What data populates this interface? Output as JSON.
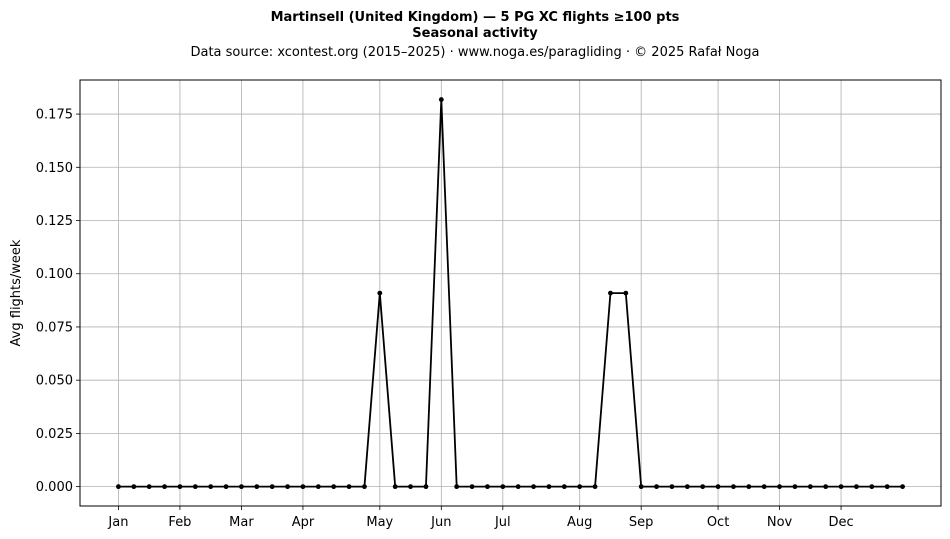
{
  "chart_data": {
    "type": "line",
    "title": "Martinsell (United Kingdom)  —  5 PG XC flights ≥100 pts",
    "subtitle": "Seasonal activity",
    "source_line": "Data source: xcontest.org (2015–2025)  ·  www.noga.es/paragliding  ·  © 2025 Rafał Noga",
    "xlabel": "",
    "ylabel": "Avg flights/week",
    "xlim": [
      -2.5,
      53.5
    ],
    "ylim": [
      -0.0091,
      0.191
    ],
    "grid": true,
    "x_ticks": [
      {
        "label": "Jan",
        "x": 0
      },
      {
        "label": "Feb",
        "x": 4
      },
      {
        "label": "Mar",
        "x": 8
      },
      {
        "label": "Apr",
        "x": 12
      },
      {
        "label": "May",
        "x": 17
      },
      {
        "label": "Jun",
        "x": 21
      },
      {
        "label": "Jul",
        "x": 25
      },
      {
        "label": "Aug",
        "x": 30
      },
      {
        "label": "Sep",
        "x": 34
      },
      {
        "label": "Oct",
        "x": 39
      },
      {
        "label": "Nov",
        "x": 43
      },
      {
        "label": "Dec",
        "x": 47
      }
    ],
    "y_ticks": [
      {
        "label": "0.000",
        "y": 0.0
      },
      {
        "label": "0.025",
        "y": 0.025
      },
      {
        "label": "0.050",
        "y": 0.05
      },
      {
        "label": "0.075",
        "y": 0.075
      },
      {
        "label": "0.100",
        "y": 0.1
      },
      {
        "label": "0.125",
        "y": 0.125
      },
      {
        "label": "0.150",
        "y": 0.15
      },
      {
        "label": "0.175",
        "y": 0.175
      }
    ],
    "series": [
      {
        "color": "#000000",
        "marker": "circle",
        "x": [
          0,
          1,
          2,
          3,
          4,
          5,
          6,
          7,
          8,
          9,
          10,
          11,
          12,
          13,
          14,
          15,
          16,
          17,
          18,
          19,
          20,
          21,
          22,
          23,
          24,
          25,
          26,
          27,
          28,
          29,
          30,
          31,
          32,
          33,
          34,
          35,
          36,
          37,
          38,
          39,
          40,
          41,
          42,
          43,
          44,
          45,
          46,
          47,
          48,
          49,
          50,
          51
        ],
        "values": [
          0,
          0,
          0,
          0,
          0,
          0,
          0,
          0,
          0,
          0,
          0,
          0,
          0,
          0,
          0,
          0,
          0,
          0.0909,
          0,
          0,
          0,
          0.1818,
          0,
          0,
          0,
          0,
          0,
          0,
          0,
          0,
          0,
          0,
          0.0909,
          0.0909,
          0,
          0,
          0,
          0,
          0,
          0,
          0,
          0,
          0,
          0,
          0,
          0,
          0,
          0,
          0,
          0,
          0,
          0
        ]
      }
    ]
  }
}
